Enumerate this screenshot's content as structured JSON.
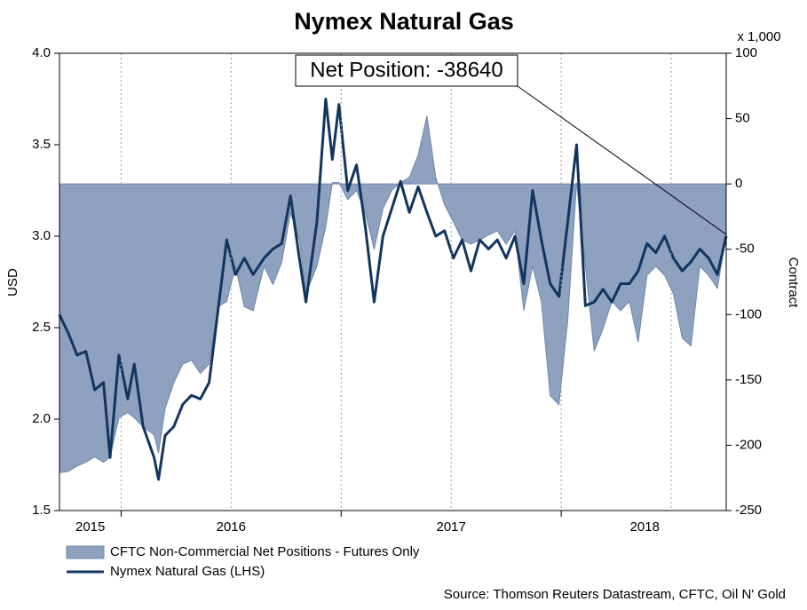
{
  "chart_data": {
    "type": "line",
    "title": "Nymex Natural Gas",
    "y_label": "USD",
    "y2_label": "Contract",
    "y2_unit": "x 1,000",
    "annotation": "Net Position: -38640",
    "source": "Source: Thomson Reuters Datastream, CFTC, Oil N' Gold",
    "grid": "x",
    "x": [
      2015.72,
      2015.76,
      2015.8,
      2015.84,
      2015.88,
      2015.92,
      2015.95,
      2015.99,
      2016.03,
      2016.06,
      2016.1,
      2016.15,
      2016.17,
      2016.2,
      2016.24,
      2016.28,
      2016.32,
      2016.36,
      2016.4,
      2016.44,
      2016.48,
      2016.52,
      2016.56,
      2016.6,
      2016.65,
      2016.69,
      2016.73,
      2016.77,
      2016.81,
      2016.84,
      2016.89,
      2016.93,
      2016.96,
      2016.99,
      2017.03,
      2017.07,
      2017.11,
      2017.15,
      2017.19,
      2017.23,
      2017.27,
      2017.31,
      2017.35,
      2017.39,
      2017.43,
      2017.47,
      2017.51,
      2017.55,
      2017.59,
      2017.63,
      2017.67,
      2017.71,
      2017.75,
      2017.79,
      2017.83,
      2017.87,
      2017.91,
      2017.95,
      2017.99,
      2018.03,
      2018.07,
      2018.11,
      2018.15,
      2018.19,
      2018.23,
      2018.27,
      2018.31,
      2018.35,
      2018.39,
      2018.43,
      2018.47,
      2018.51,
      2018.55,
      2018.59,
      2018.63,
      2018.67,
      2018.71,
      2018.75
    ],
    "xlim": [
      2015.72,
      2018.75
    ],
    "xticks": [
      2016,
      2016.5,
      2017,
      2017.5,
      2018,
      2018.5
    ],
    "xlabels": [
      {
        "value": 2015.86,
        "label": "2015"
      },
      {
        "value": 2016.5,
        "label": "2016"
      },
      {
        "value": 2017.5,
        "label": "2017"
      },
      {
        "value": 2018.38,
        "label": "2018"
      }
    ],
    "ylim": [
      1.5,
      4
    ],
    "yticks": [
      1.5,
      {
        "value": 2,
        "label": "2.0"
      },
      2.5,
      {
        "value": 3,
        "label": "3.0"
      },
      3.5,
      {
        "value": 4,
        "label": "4.0"
      }
    ],
    "y2lim": [
      -250,
      100
    ],
    "y2ticks": [
      -250,
      -200,
      -150,
      -100,
      -50,
      0,
      50,
      100
    ],
    "series": [
      {
        "name": "CFTC Non-Commercial Net Positions - Futures Only",
        "type": "area",
        "axis": "y2",
        "color": "#8ea1bf",
        "values": [
          -221,
          -220,
          -216,
          -213,
          -209,
          -213,
          -209,
          -179,
          -175,
          -179,
          -186,
          -192,
          -206,
          -172,
          -152,
          -138,
          -135,
          -145,
          -138,
          -94,
          -90,
          -63,
          -94,
          -97,
          -63,
          -77,
          -60,
          -22,
          -43,
          -84,
          -63,
          -33,
          1,
          1,
          -12,
          -5,
          -22,
          -50,
          -19,
          -5,
          1,
          5,
          22,
          52,
          5,
          -16,
          -29,
          -43,
          -46,
          -43,
          -39,
          -36,
          -46,
          -36,
          -97,
          -63,
          -90,
          -162,
          -169,
          -104,
          1,
          -63,
          -128,
          -111,
          -90,
          -97,
          -90,
          -121,
          -70,
          -63,
          -70,
          -84,
          -118,
          -124,
          -63,
          -70,
          -80,
          -38.64
        ]
      },
      {
        "name": "Nymex Natural Gas (LHS)",
        "type": "line",
        "color": "#12355f",
        "values": [
          2.57,
          2.47,
          2.35,
          2.37,
          2.16,
          2.2,
          1.79,
          2.35,
          2.11,
          2.3,
          1.96,
          1.79,
          1.67,
          1.91,
          1.96,
          2.08,
          2.13,
          2.11,
          2.2,
          2.59,
          2.98,
          2.79,
          2.88,
          2.79,
          2.88,
          2.93,
          2.96,
          3.22,
          2.88,
          2.64,
          3.08,
          3.75,
          3.42,
          3.72,
          3.25,
          3.39,
          3.05,
          2.64,
          3.0,
          3.15,
          3.3,
          3.13,
          3.27,
          3.13,
          3.0,
          3.03,
          2.88,
          2.98,
          2.81,
          2.98,
          2.93,
          2.98,
          2.88,
          3.0,
          2.74,
          3.25,
          2.98,
          2.74,
          2.67,
          3.08,
          3.5,
          2.62,
          2.64,
          2.71,
          2.64,
          2.74,
          2.74,
          2.81,
          2.96,
          2.91,
          3.0,
          2.88,
          2.81,
          2.86,
          2.93,
          2.88,
          2.79,
          3.0
        ]
      }
    ]
  }
}
